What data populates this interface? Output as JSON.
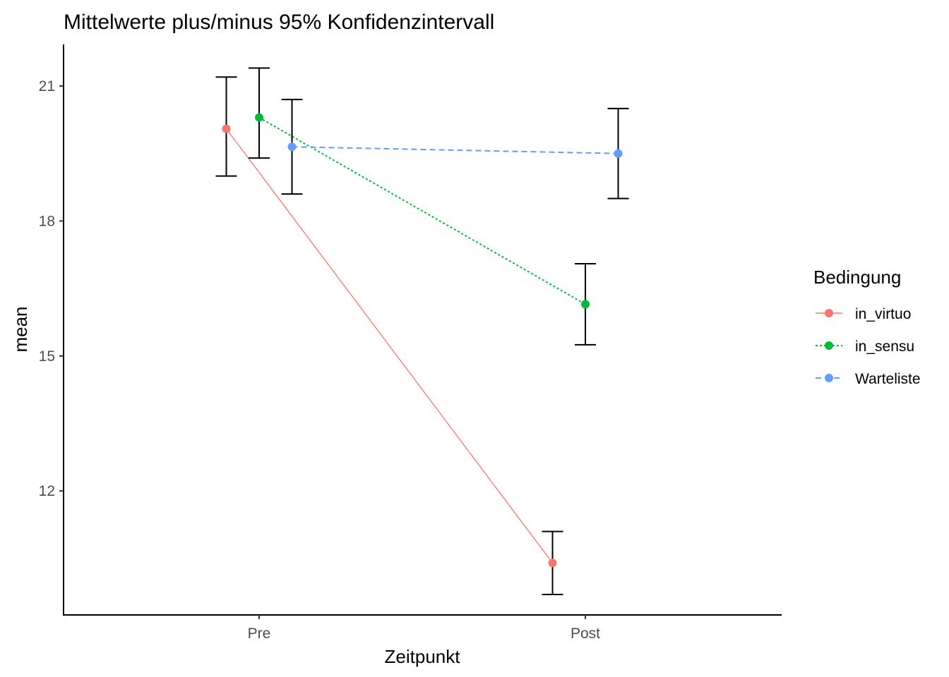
{
  "chart_data": {
    "type": "line",
    "title": "Mittelwerte plus/minus 95% Konfidenzintervall",
    "xlabel": "Zeitpunkt",
    "ylabel": "mean",
    "categories": [
      "Pre",
      "Post"
    ],
    "y_ticks": [
      12,
      15,
      18,
      21
    ],
    "y_tick_labels": [
      "12",
      "15",
      "18",
      "21"
    ],
    "ylim": [
      9.2,
      21.9
    ],
    "grid": false,
    "legend": {
      "title": "Bedingung",
      "position": "right"
    },
    "series": [
      {
        "name": "in_virtuo",
        "color": "#F8766D",
        "linetype": "solid",
        "values": [
          20.05,
          10.4
        ],
        "ci_lower": [
          19.0,
          9.7
        ],
        "ci_upper": [
          21.2,
          11.1
        ]
      },
      {
        "name": "in_sensu",
        "color": "#00BA38",
        "linetype": "dotted",
        "values": [
          20.3,
          16.15
        ],
        "ci_lower": [
          19.4,
          15.25
        ],
        "ci_upper": [
          21.4,
          17.05
        ]
      },
      {
        "name": "Warteliste",
        "color": "#619CFF",
        "linetype": "dashed",
        "values": [
          19.65,
          19.5
        ],
        "ci_lower": [
          18.6,
          18.5
        ],
        "ci_upper": [
          20.7,
          20.5
        ]
      }
    ]
  }
}
